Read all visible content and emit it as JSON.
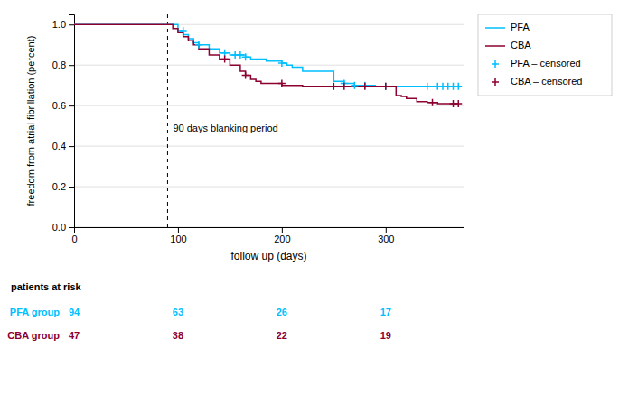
{
  "chart_data": {
    "type": "step",
    "xlabel": "follow up (days)",
    "ylabel": "freedom from atrial fibrillation (percent)",
    "xlim": [
      0,
      375
    ],
    "ylim": [
      0.0,
      1.05
    ],
    "xticks": [
      0,
      100,
      200,
      300
    ],
    "yticks": [
      {
        "value": 0.0,
        "label": "0.0"
      },
      0.2,
      0.4,
      0.6,
      0.8,
      {
        "value": 1.0,
        "label": "1.0"
      }
    ],
    "grid": true,
    "legend": "right",
    "series": [
      {
        "name": "PFA",
        "type": "step",
        "color": "#00bfff",
        "x": [
          0,
          90,
          100,
          105,
          110,
          115,
          120,
          130,
          140,
          145,
          150,
          155,
          160,
          165,
          170,
          175,
          180,
          185,
          190,
          200,
          205,
          210,
          220,
          250,
          260,
          270,
          280,
          290,
          300,
          310,
          320,
          330,
          340,
          350,
          360,
          370
        ],
        "values": [
          1.0,
          1.0,
          0.97,
          0.95,
          0.93,
          0.91,
          0.9,
          0.88,
          0.86,
          0.86,
          0.85,
          0.85,
          0.85,
          0.84,
          0.83,
          0.83,
          0.83,
          0.82,
          0.82,
          0.81,
          0.8,
          0.79,
          0.77,
          0.72,
          0.71,
          0.7,
          0.7,
          0.695,
          0.695,
          0.695,
          0.695,
          0.695,
          0.695,
          0.695,
          0.695,
          0.695
        ]
      },
      {
        "name": "CBA",
        "type": "step",
        "color": "#8b0030",
        "x": [
          0,
          90,
          95,
          100,
          105,
          110,
          115,
          120,
          130,
          140,
          150,
          160,
          165,
          170,
          175,
          180,
          185,
          200,
          210,
          220,
          250,
          260,
          270,
          280,
          290,
          300,
          310,
          315,
          320,
          330,
          340,
          350,
          360,
          370
        ],
        "values": [
          1.0,
          1.0,
          0.98,
          0.96,
          0.94,
          0.92,
          0.9,
          0.88,
          0.85,
          0.83,
          0.8,
          0.77,
          0.75,
          0.73,
          0.72,
          0.71,
          0.71,
          0.7,
          0.7,
          0.695,
          0.695,
          0.695,
          0.695,
          0.695,
          0.695,
          0.695,
          0.65,
          0.645,
          0.635,
          0.62,
          0.615,
          0.61,
          0.61,
          0.61
        ]
      },
      {
        "name": "PFA – censored",
        "type": "scatter",
        "marker": "plus",
        "color": "#00bfff",
        "x": [
          105,
          120,
          145,
          155,
          160,
          165,
          200,
          260,
          270,
          280,
          300,
          340,
          350,
          355,
          360,
          365,
          370
        ],
        "values": [
          0.97,
          0.9,
          0.86,
          0.85,
          0.85,
          0.84,
          0.81,
          0.71,
          0.7,
          0.7,
          0.695,
          0.695,
          0.695,
          0.695,
          0.695,
          0.695,
          0.695
        ]
      },
      {
        "name": "CBA – censored",
        "type": "scatter",
        "marker": "plus",
        "color": "#8b0030",
        "x": [
          145,
          165,
          200,
          250,
          260,
          280,
          300,
          345,
          365,
          370
        ],
        "values": [
          0.83,
          0.75,
          0.71,
          0.695,
          0.695,
          0.695,
          0.695,
          0.615,
          0.61,
          0.61
        ]
      }
    ],
    "annotations": [
      {
        "x": 90,
        "text": "90 days blanking period"
      }
    ],
    "risk_table": {
      "title": "patients at risk",
      "x": [
        0,
        100,
        200,
        300
      ],
      "rows": [
        {
          "name": "PFA group",
          "color": "#00bfff",
          "values": [
            94,
            63,
            26,
            17
          ]
        },
        {
          "name": "CBA group",
          "color": "#8b0030",
          "values": [
            47,
            38,
            22,
            19
          ]
        }
      ]
    }
  }
}
